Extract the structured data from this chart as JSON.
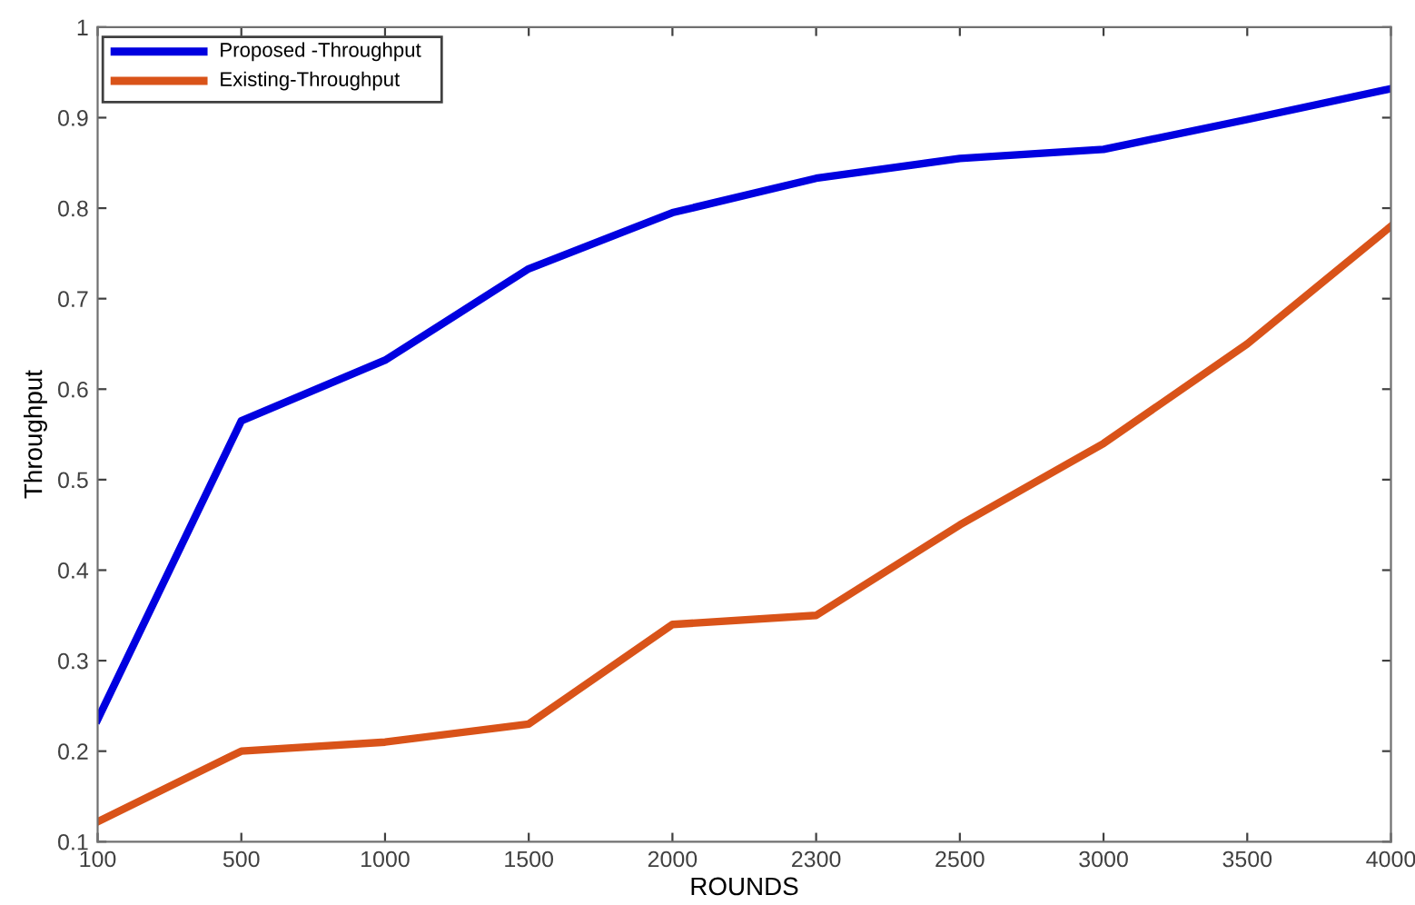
{
  "chart_data": {
    "type": "line",
    "xlabel": "ROUNDS",
    "ylabel": "Throughput",
    "categories": [
      "100",
      "500",
      "1000",
      "1500",
      "2000",
      "2300",
      "2500",
      "3000",
      "3500",
      "4000"
    ],
    "series": [
      {
        "name": "Proposed -Throughput",
        "color": "#0000e0",
        "values": [
          0.235,
          0.565,
          0.632,
          0.733,
          0.795,
          0.833,
          0.855,
          0.865,
          0.898,
          0.932
        ]
      },
      {
        "name": "Existing-Throughput",
        "color": "#d95319",
        "values": [
          0.122,
          0.2,
          0.21,
          0.23,
          0.34,
          0.35,
          0.45,
          0.54,
          0.65,
          0.78
        ]
      }
    ],
    "ylim": [
      0.1,
      1
    ],
    "yticks": [
      0.1,
      0.2,
      0.3,
      0.4,
      0.5,
      0.6,
      0.7,
      0.8,
      0.9,
      1
    ],
    "grid": false,
    "legend": "top left",
    "marker": "none",
    "line_style": "solid"
  }
}
